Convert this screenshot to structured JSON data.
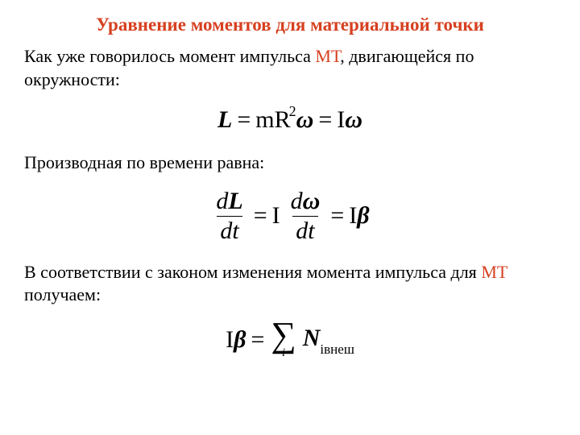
{
  "title": "Уравнение моментов для материальной точки",
  "para1_part1": "Как уже говорилось момент импульса ",
  "para1_highlight": "МТ",
  "para1_part2": ", двигающейся по окружности:",
  "eq1": {
    "L": "L",
    "eq_sign": "=",
    "m": "m",
    "R": "R",
    "sq": "2",
    "omega1": "ω",
    "I1": "I",
    "omega2": "ω"
  },
  "para2": "Производная по времени равна:",
  "eq2": {
    "d1": "d",
    "L": "L",
    "dt1": "dt",
    "eq_sign": "=",
    "I1": "I",
    "d2": "d",
    "omega": "ω",
    "dt2": "dt",
    "I2": "I",
    "beta": "β"
  },
  "para3_part1": "В соответствии с законом изменения момента импульса для ",
  "para3_highlight": "МТ",
  "para3_part2": " получаем:",
  "eq3": {
    "I": "I",
    "beta": "β",
    "eq_sign": "=",
    "sigma": "∑",
    "sigma_sub": "i",
    "N": "N",
    "N_sub_i": "i",
    "N_sub_rest": "внеш"
  },
  "colors": {
    "accent": "#d64020",
    "text": "#000000",
    "bg": "#ffffff"
  },
  "typography": {
    "title_fontsize": 23,
    "body_fontsize": 22,
    "equation_fontsize": 30,
    "font_family": "Times New Roman"
  }
}
